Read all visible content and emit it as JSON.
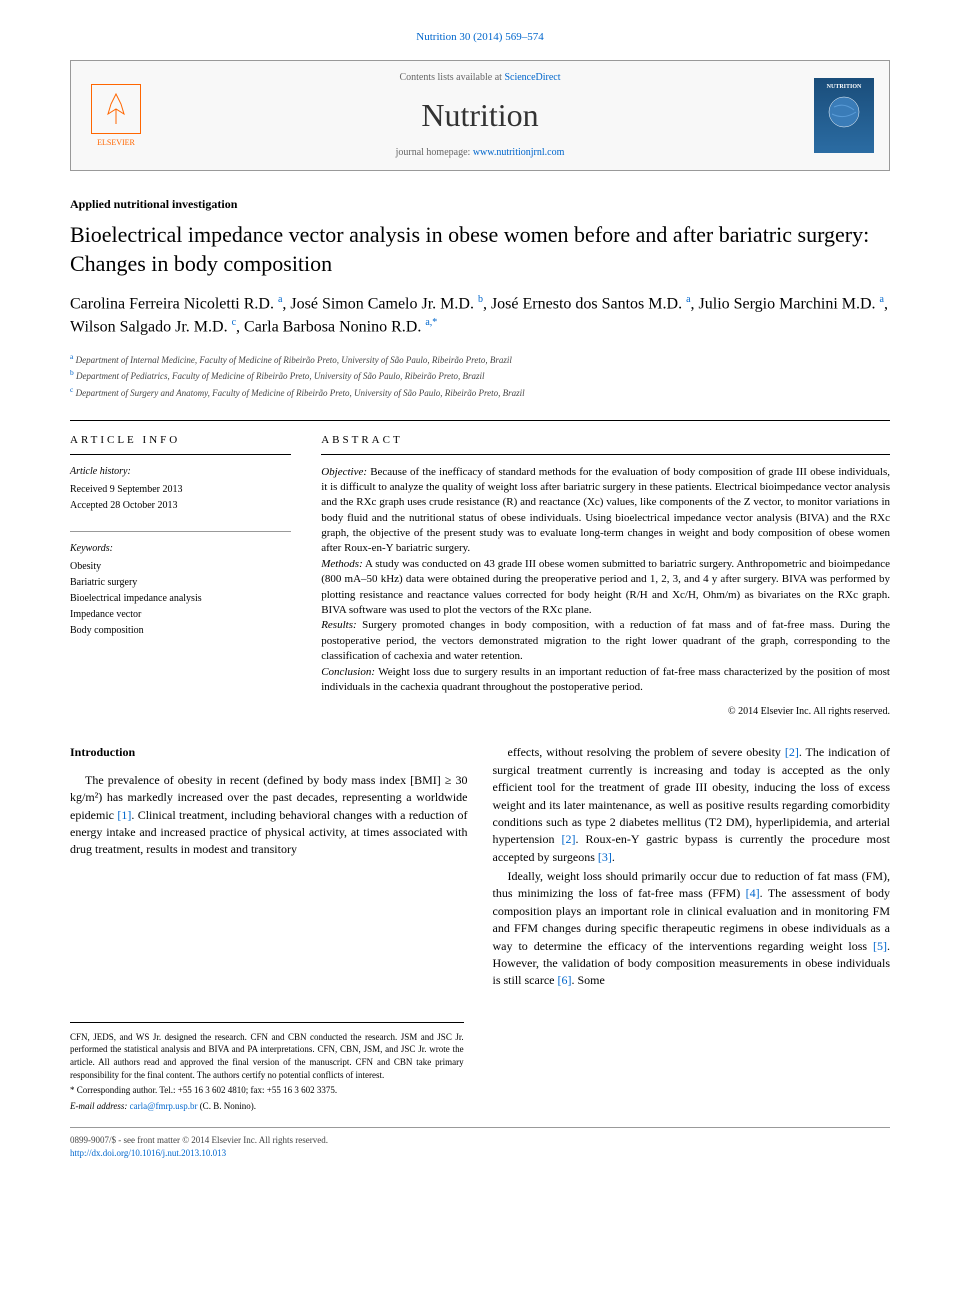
{
  "citation": "Nutrition 30 (2014) 569–574",
  "header": {
    "contents_prefix": "Contents lists available at ",
    "contents_link": "ScienceDirect",
    "journal_title": "Nutrition",
    "homepage_prefix": "journal homepage: ",
    "homepage_link": "www.nutritionjrnl.com",
    "elsevier_label": "ELSEVIER",
    "cover_label": "NUTRITION"
  },
  "article": {
    "type": "Applied nutritional investigation",
    "title": "Bioelectrical impedance vector analysis in obese women before and after bariatric surgery: Changes in body composition",
    "authors_html": "Carolina Ferreira Nicoletti R.D. <sup>a</sup>, José Simon Camelo Jr. M.D. <sup>b</sup>, José Ernesto dos Santos M.D. <sup>a</sup>, Julio Sergio Marchini M.D. <sup>a</sup>, Wilson Salgado Jr. M.D. <sup>c</sup>, Carla Barbosa Nonino R.D. <sup>a,*</sup>",
    "affiliations": [
      {
        "sup": "a",
        "text": "Department of Internal Medicine, Faculty of Medicine of Ribeirão Preto, University of São Paulo, Ribeirão Preto, Brazil"
      },
      {
        "sup": "b",
        "text": "Department of Pediatrics, Faculty of Medicine of Ribeirão Preto, University of São Paulo, Ribeirão Preto, Brazil"
      },
      {
        "sup": "c",
        "text": "Department of Surgery and Anatomy, Faculty of Medicine of Ribeirão Preto, University of São Paulo, Ribeirão Preto, Brazil"
      }
    ]
  },
  "info": {
    "header": "ARTICLE INFO",
    "history_label": "Article history:",
    "received": "Received 9 September 2013",
    "accepted": "Accepted 28 October 2013",
    "keywords_label": "Keywords:",
    "keywords": [
      "Obesity",
      "Bariatric surgery",
      "Bioelectrical impedance analysis",
      "Impedance vector",
      "Body composition"
    ]
  },
  "abstract": {
    "header": "ABSTRACT",
    "objective_label": "Objective:",
    "objective": " Because of the inefficacy of standard methods for the evaluation of body composition of grade III obese individuals, it is difficult to analyze the quality of weight loss after bariatric surgery in these patients. Electrical bioimpedance vector analysis and the RXc graph uses crude resistance (R) and reactance (Xc) values, like components of the Z vector, to monitor variations in body fluid and the nutritional status of obese individuals. Using bioelectrical impedance vector analysis (BIVA) and the RXc graph, the objective of the present study was to evaluate long-term changes in weight and body composition of obese women after Roux-en-Y bariatric surgery.",
    "methods_label": "Methods:",
    "methods": " A study was conducted on 43 grade III obese women submitted to bariatric surgery. Anthropometric and bioimpedance (800 mA–50 kHz) data were obtained during the preoperative period and 1, 2, 3, and 4 y after surgery. BIVA was performed by plotting resistance and reactance values corrected for body height (R/H and Xc/H, Ohm/m) as bivariates on the RXc graph. BIVA software was used to plot the vectors of the RXc plane.",
    "results_label": "Results:",
    "results": " Surgery promoted changes in body composition, with a reduction of fat mass and of fat-free mass. During the postoperative period, the vectors demonstrated migration to the right lower quadrant of the graph, corresponding to the classification of cachexia and water retention.",
    "conclusion_label": "Conclusion:",
    "conclusion": " Weight loss due to surgery results in an important reduction of fat-free mass characterized by the position of most individuals in the cachexia quadrant throughout the postoperative period.",
    "copyright": "© 2014 Elsevier Inc. All rights reserved."
  },
  "body": {
    "intro_header": "Introduction",
    "para1": "The prevalence of obesity in recent (defined by body mass index [BMI] ≥ 30 kg/m²) has markedly increased over the past decades, representing a worldwide epidemic [1]. Clinical treatment, including behavioral changes with a reduction of energy intake and increased practice of physical activity, at times associated with drug treatment, results in modest and transitory",
    "para2": "effects, without resolving the problem of severe obesity [2]. The indication of surgical treatment currently is increasing and today is accepted as the only efficient tool for the treatment of grade III obesity, inducing the loss of excess weight and its later maintenance, as well as positive results regarding comorbidity conditions such as type 2 diabetes mellitus (T2 DM), hyperlipidemia, and arterial hypertension [2]. Roux-en-Y gastric bypass is currently the procedure most accepted by surgeons [3].",
    "para3": "Ideally, weight loss should primarily occur due to reduction of fat mass (FM), thus minimizing the loss of fat-free mass (FFM) [4]. The assessment of body composition plays an important role in clinical evaluation and in monitoring FM and FFM changes during specific therapeutic regimens in obese individuals as a way to determine the efficacy of the interventions regarding weight loss [5]. However, the validation of body composition measurements in obese individuals is still scarce [6]. Some"
  },
  "footnotes": {
    "contributions": "CFN, JEDS, and WS Jr. designed the research. CFN and CBN conducted the research. JSM and JSC Jr. performed the statistical analysis and BIVA and PA interpretations. CFN, CBN, JSM, and JSC Jr. wrote the article. All authors read and approved the final version of the manuscript. CFN and CBN take primary responsibility for the final content. The authors certify no potential conflicts of interest.",
    "corresponding": "* Corresponding author. Tel.: +55 16 3 602 4810; fax: +55 16 3 602 3375.",
    "email_label": "E-mail address: ",
    "email": "carla@fmrp.usp.br",
    "email_suffix": " (C. B. Nonino)."
  },
  "footer": {
    "issn": "0899-9007/$ - see front matter © 2014 Elsevier Inc. All rights reserved.",
    "doi": "http://dx.doi.org/10.1016/j.nut.2013.10.013"
  },
  "colors": {
    "link": "#0066cc",
    "elsevier": "#ff6600",
    "text": "#000000"
  }
}
